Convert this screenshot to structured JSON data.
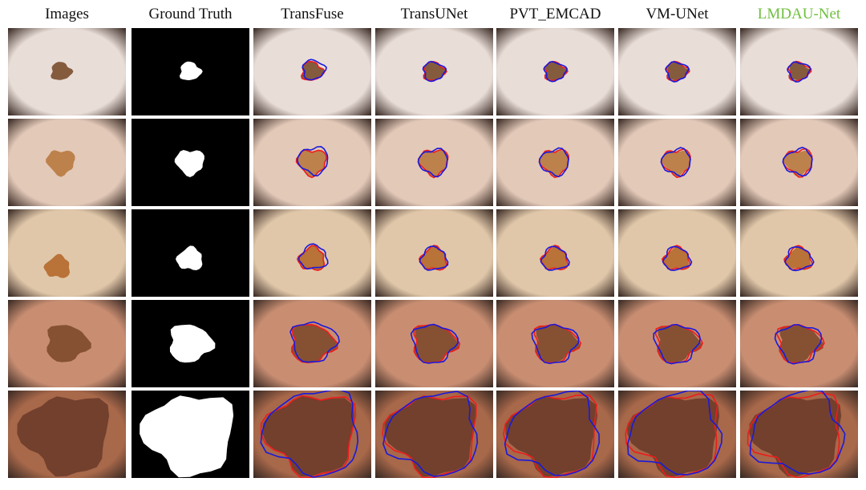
{
  "figure": {
    "column_headers": [
      "Images",
      "Ground Truth",
      "TransFuse",
      "TransUNet",
      "PVT_EMCAD",
      "VM-UNet",
      "LMDAU-Net"
    ],
    "highlighted_column": "LMDAU-Net",
    "rows": [
      {
        "skin": "#e9ddd8",
        "lesion": "#7a4c2e",
        "lesion_size": 0.22
      },
      {
        "skin": "#e3c9b8",
        "lesion": "#b8793f",
        "lesion_size": 0.3
      },
      {
        "skin": "#e0c7a9",
        "lesion": "#b5682a",
        "lesion_size": 0.27
      },
      {
        "skin": "#c98e72",
        "lesion": "#7e4a2c",
        "lesion_size": 0.45
      },
      {
        "skin": "#a8684a",
        "lesion": "#6b3c2a",
        "lesion_size": 0.95
      }
    ],
    "colors": {
      "header_text": "#111111",
      "highlight_text": "#6fbf3f",
      "ground_truth_fg": "#ffffff",
      "ground_truth_bg": "#000000",
      "prediction_contour": "#1a1adb",
      "reference_contour": "#ee1c1c"
    }
  }
}
